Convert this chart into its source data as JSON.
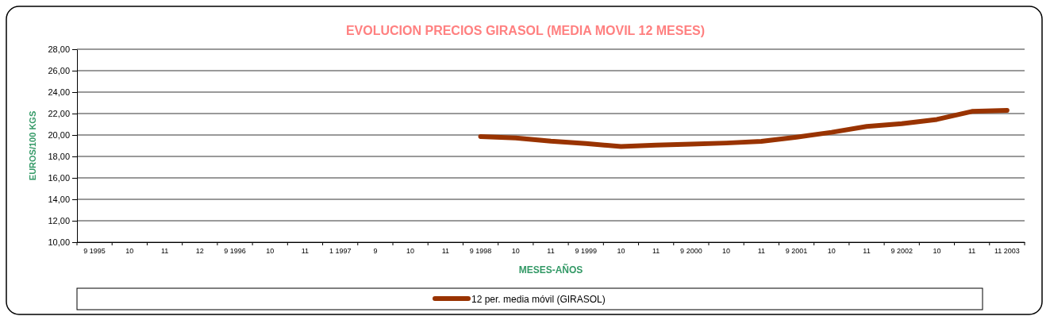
{
  "chart_data": {
    "type": "line",
    "title": "EVOLUCION PRECIOS GIRASOL (MEDIA MOVIL 12 MESES)",
    "xlabel": "MESES-AÑOS",
    "ylabel": "EUROS/100 KGS",
    "categories": [
      "9 1995",
      "10",
      "11",
      "12",
      "9 1996",
      "10",
      "11",
      "1 1997",
      "9",
      "10",
      "11",
      "9 1998",
      "10",
      "11",
      "9 1999",
      "10",
      "11",
      "9 2000",
      "10",
      "11",
      "9 2001",
      "10",
      "11",
      "9 2002",
      "10",
      "11",
      "11 2003"
    ],
    "series": [
      {
        "name": "12 per. media móvil (GIRASOL)",
        "color": "#993300",
        "values": [
          null,
          null,
          null,
          null,
          null,
          null,
          null,
          null,
          null,
          null,
          null,
          19.86,
          19.73,
          19.42,
          19.2,
          18.92,
          19.05,
          19.15,
          19.25,
          19.4,
          19.8,
          20.25,
          20.8,
          21.05,
          21.45,
          22.2,
          22.3
        ]
      }
    ],
    "ylim": [
      10,
      28
    ],
    "yticks": [
      {
        "value": 10,
        "label": "10,00"
      },
      {
        "value": 12,
        "label": "12,00"
      },
      {
        "value": 14,
        "label": "14,00"
      },
      {
        "value": 16,
        "label": "16,00"
      },
      {
        "value": 18,
        "label": "18,00"
      },
      {
        "value": 20,
        "label": "20,00"
      },
      {
        "value": 22,
        "label": "22,00"
      },
      {
        "value": 24,
        "label": "24,00"
      },
      {
        "value": 26,
        "label": "26,00"
      },
      {
        "value": 28,
        "label": "28,00"
      }
    ],
    "grid": "y",
    "legend": "bottom",
    "marker": "none",
    "line_style": "solid"
  }
}
